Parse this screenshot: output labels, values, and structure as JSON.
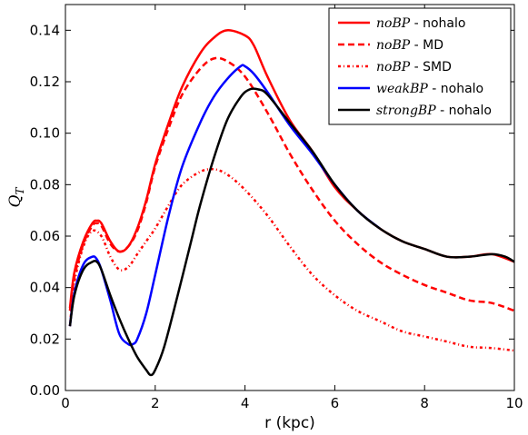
{
  "chart_data": {
    "type": "line",
    "xlabel": "r (kpc)",
    "ylabel": "Q_T",
    "xlim": [
      0,
      10
    ],
    "ylim": [
      0,
      0.15
    ],
    "xticks": [
      0,
      2,
      4,
      6,
      8,
      10
    ],
    "xtick_labels": [
      "0",
      "2",
      "4",
      "6",
      "8",
      "10"
    ],
    "yticks": [
      0.0,
      0.02,
      0.04,
      0.06,
      0.08,
      0.1,
      0.12,
      0.14
    ],
    "ytick_labels": [
      "0.00",
      "0.02",
      "0.04",
      "0.06",
      "0.08",
      "0.10",
      "0.12",
      "0.14"
    ],
    "grid": false,
    "legend_position": "top-right",
    "series": [
      {
        "name": "noBP - nohalo",
        "legend_italic": "noBP",
        "legend_suffix": " - nohalo",
        "color": "#ff0000",
        "style": "solid",
        "x": [
          0.1,
          0.2,
          0.4,
          0.6,
          0.7,
          0.8,
          1.0,
          1.2,
          1.4,
          1.6,
          1.8,
          2.0,
          2.3,
          2.6,
          3.0,
          3.3,
          3.6,
          4.0,
          4.2,
          4.5,
          5.0,
          5.5,
          6.0,
          6.5,
          7.0,
          7.5,
          8.0,
          8.5,
          9.0,
          9.5,
          10.0
        ],
        "y": [
          0.032,
          0.046,
          0.058,
          0.065,
          0.066,
          0.065,
          0.058,
          0.054,
          0.056,
          0.063,
          0.074,
          0.088,
          0.104,
          0.118,
          0.131,
          0.137,
          0.14,
          0.138,
          0.134,
          0.122,
          0.105,
          0.093,
          0.079,
          0.07,
          0.063,
          0.058,
          0.055,
          0.052,
          0.052,
          0.053,
          0.05
        ]
      },
      {
        "name": "noBP - MD",
        "legend_italic": "noBP",
        "legend_suffix": " - MD",
        "color": "#ff0000",
        "style": "dashed",
        "x": [
          0.1,
          0.2,
          0.4,
          0.6,
          0.7,
          0.8,
          1.0,
          1.2,
          1.4,
          1.6,
          1.8,
          2.0,
          2.3,
          2.6,
          3.0,
          3.3,
          3.6,
          4.0,
          4.5,
          5.0,
          5.5,
          6.0,
          6.5,
          7.0,
          7.5,
          8.0,
          8.5,
          9.0,
          9.5,
          10.0
        ],
        "y": [
          0.031,
          0.044,
          0.057,
          0.064,
          0.065,
          0.064,
          0.057,
          0.054,
          0.056,
          0.062,
          0.073,
          0.087,
          0.102,
          0.115,
          0.125,
          0.129,
          0.128,
          0.122,
          0.108,
          0.092,
          0.078,
          0.066,
          0.057,
          0.05,
          0.045,
          0.041,
          0.038,
          0.035,
          0.034,
          0.031
        ]
      },
      {
        "name": "noBP - SMD",
        "legend_italic": "noBP",
        "legend_suffix": " - SMD",
        "color": "#ff0000",
        "style": "dashdot",
        "x": [
          0.1,
          0.2,
          0.4,
          0.6,
          0.8,
          1.0,
          1.2,
          1.4,
          1.6,
          1.8,
          2.0,
          2.3,
          2.6,
          3.0,
          3.3,
          3.6,
          4.0,
          4.5,
          5.0,
          5.5,
          6.0,
          6.5,
          7.0,
          7.5,
          8.0,
          8.5,
          9.0,
          9.5,
          10.0
        ],
        "y": [
          0.025,
          0.042,
          0.056,
          0.062,
          0.06,
          0.052,
          0.047,
          0.048,
          0.053,
          0.058,
          0.063,
          0.072,
          0.08,
          0.085,
          0.086,
          0.084,
          0.078,
          0.068,
          0.056,
          0.045,
          0.037,
          0.031,
          0.027,
          0.023,
          0.021,
          0.019,
          0.017,
          0.0165,
          0.0155
        ]
      },
      {
        "name": "weakBP - nohalo",
        "legend_italic": "weakBP",
        "legend_suffix": " - nohalo",
        "color": "#0000ff",
        "style": "solid",
        "x": [
          0.1,
          0.2,
          0.4,
          0.6,
          0.7,
          0.8,
          1.0,
          1.2,
          1.4,
          1.5,
          1.6,
          1.8,
          2.0,
          2.3,
          2.6,
          3.0,
          3.3,
          3.6,
          3.9,
          4.0,
          4.2,
          4.5,
          5.0,
          5.5,
          6.0,
          6.5,
          7.0
        ],
        "y": [
          0.025,
          0.038,
          0.049,
          0.052,
          0.051,
          0.047,
          0.035,
          0.022,
          0.018,
          0.018,
          0.02,
          0.03,
          0.045,
          0.068,
          0.087,
          0.104,
          0.114,
          0.121,
          0.126,
          0.126,
          0.123,
          0.116,
          0.103,
          0.092,
          0.08,
          0.07,
          0.063
        ]
      },
      {
        "name": "strongBP - nohalo",
        "legend_italic": "strongBP",
        "legend_suffix": " - nohalo",
        "color": "#000000",
        "style": "solid",
        "x": [
          0.1,
          0.2,
          0.4,
          0.6,
          0.7,
          0.8,
          1.0,
          1.2,
          1.4,
          1.6,
          1.8,
          1.9,
          2.0,
          2.2,
          2.5,
          2.8,
          3.0,
          3.3,
          3.6,
          3.9,
          4.1,
          4.3,
          4.5,
          5.0,
          5.5,
          6.0,
          6.5,
          7.0,
          7.5,
          8.0,
          8.5,
          9.0,
          9.5,
          9.8,
          10.0
        ],
        "y": [
          0.025,
          0.037,
          0.047,
          0.05,
          0.05,
          0.047,
          0.037,
          0.028,
          0.02,
          0.013,
          0.008,
          0.006,
          0.008,
          0.017,
          0.037,
          0.058,
          0.072,
          0.09,
          0.105,
          0.114,
          0.117,
          0.117,
          0.115,
          0.104,
          0.093,
          0.08,
          0.07,
          0.063,
          0.058,
          0.055,
          0.052,
          0.052,
          0.053,
          0.052,
          0.05
        ]
      }
    ]
  }
}
